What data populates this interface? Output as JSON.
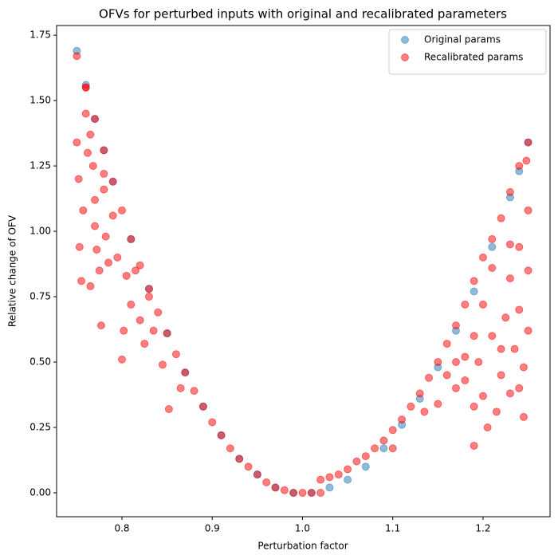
{
  "chart_data": {
    "type": "scatter",
    "title": "OFVs for perturbed inputs with original and recalibrated parameters",
    "x_label": "Perturbation factor",
    "y_label": "Relative change of OFV",
    "xlim": [
      0.7276,
      1.2742
    ],
    "ylim": [
      -0.0915,
      1.787
    ],
    "xticks": [
      0.8,
      0.9,
      {
        "value": 1,
        "label": "1.0"
      },
      1.1,
      1.2
    ],
    "yticks": [
      {
        "value": 0,
        "label": "0.00"
      },
      {
        "value": 0.25,
        "label": "0.25"
      },
      {
        "value": 0.5,
        "label": "0.50"
      },
      {
        "value": 0.75,
        "label": "0.75"
      },
      {
        "value": 1,
        "label": "1.00"
      },
      {
        "value": 1.25,
        "label": "1.25"
      },
      {
        "value": 1.5,
        "label": "1.50"
      },
      {
        "value": 1.75,
        "label": "1.75"
      }
    ],
    "legend_position": "upper right",
    "series": [
      {
        "name": "Original params",
        "color": "#1f77b4",
        "x": [
          0.75,
          0.76,
          0.77,
          0.78,
          0.79,
          0.81,
          0.83,
          0.85,
          0.87,
          0.89,
          0.91,
          0.93,
          0.95,
          0.97,
          0.99,
          1.01,
          1.03,
          1.05,
          1.07,
          1.09,
          1.11,
          1.13,
          1.15,
          1.17,
          1.19,
          1.21,
          1.23,
          1.24,
          1.25
        ],
        "values": [
          1.69,
          1.56,
          1.43,
          1.31,
          1.19,
          0.97,
          0.78,
          0.61,
          0.46,
          0.33,
          0.22,
          0.13,
          0.07,
          0.02,
          0.0,
          0.0,
          0.02,
          0.05,
          0.1,
          0.17,
          0.26,
          0.36,
          0.48,
          0.62,
          0.77,
          0.94,
          1.13,
          1.23,
          1.34
        ]
      },
      {
        "name": "Recalibrated params",
        "color": "#ff0000",
        "x": [
          0.75,
          0.76,
          0.77,
          0.78,
          0.79,
          0.8,
          0.81,
          0.82,
          0.83,
          0.84,
          0.85,
          0.86,
          0.87,
          0.88,
          0.89,
          0.9,
          0.91,
          0.92,
          0.93,
          0.94,
          0.95,
          0.96,
          0.97,
          0.98,
          0.99,
          1.0,
          1.01,
          1.02,
          1.02,
          1.03,
          1.04,
          1.05,
          1.06,
          1.07,
          1.08,
          1.09,
          1.1,
          1.11,
          1.12,
          1.13,
          1.14,
          1.15,
          1.16,
          1.17,
          1.18,
          1.19,
          1.2,
          1.21,
          1.22,
          1.23,
          1.24,
          1.25,
          0.75,
          0.752,
          0.753,
          0.755,
          0.757,
          0.76,
          0.762,
          0.765,
          0.768,
          0.77,
          0.772,
          0.775,
          0.777,
          0.78,
          0.782,
          0.785,
          0.79,
          0.795,
          0.8,
          0.802,
          0.805,
          0.81,
          0.815,
          0.82,
          0.825,
          0.83,
          0.835,
          0.845,
          0.852,
          0.865,
          0.76,
          0.765,
          0.77,
          0.78,
          1.1,
          1.135,
          1.15,
          1.16,
          1.17,
          1.18,
          1.19,
          1.19,
          1.195,
          1.2,
          1.205,
          1.21,
          1.215,
          1.22,
          1.225,
          1.23,
          1.23,
          1.235,
          1.24,
          1.24,
          1.245,
          1.245,
          1.25,
          1.25,
          1.248,
          1.25,
          1.23,
          1.21,
          1.2,
          1.22,
          1.24,
          1.19,
          1.18,
          1.17
        ],
        "values": [
          1.67,
          1.55,
          1.43,
          1.31,
          1.19,
          1.08,
          0.97,
          0.87,
          0.78,
          0.69,
          0.61,
          0.53,
          0.46,
          0.39,
          0.33,
          0.27,
          0.22,
          0.17,
          0.13,
          0.1,
          0.07,
          0.04,
          0.02,
          0.01,
          0.0,
          0.0,
          0.0,
          0.0,
          0.05,
          0.06,
          0.07,
          0.09,
          0.12,
          0.14,
          0.17,
          0.2,
          0.24,
          0.28,
          0.33,
          0.38,
          0.44,
          0.5,
          0.57,
          0.64,
          0.72,
          0.81,
          0.9,
          0.97,
          1.05,
          1.15,
          1.25,
          1.34,
          1.34,
          1.2,
          0.94,
          0.81,
          1.08,
          1.45,
          1.3,
          0.79,
          1.25,
          1.02,
          0.93,
          0.85,
          0.64,
          1.16,
          0.98,
          0.88,
          1.06,
          0.9,
          0.51,
          0.62,
          0.83,
          0.72,
          0.85,
          0.66,
          0.57,
          0.75,
          0.62,
          0.49,
          0.32,
          0.4,
          1.55,
          1.37,
          1.12,
          1.22,
          0.17,
          0.31,
          0.34,
          0.45,
          0.4,
          0.43,
          0.18,
          0.33,
          0.5,
          0.37,
          0.25,
          0.6,
          0.31,
          0.45,
          0.67,
          0.38,
          0.82,
          0.55,
          0.94,
          0.7,
          0.29,
          0.48,
          0.62,
          0.85,
          1.27,
          1.08,
          0.95,
          0.86,
          0.72,
          0.55,
          0.4,
          0.6,
          0.52,
          0.5
        ]
      }
    ]
  }
}
